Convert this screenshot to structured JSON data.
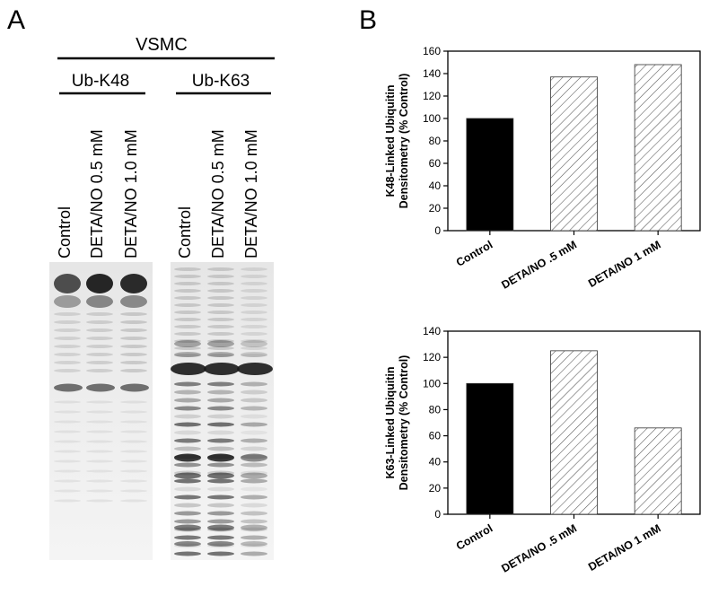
{
  "panel_a": {
    "letter": "A",
    "cell_label": "VSMC",
    "group_k48": "Ub-K48",
    "group_k63": "Ub-K63",
    "lanes_k48": [
      "Control",
      "DETA/NO 0.5 mM",
      "DETA/NO 1.0 mM"
    ],
    "lanes_k63": [
      "Control",
      "DETA/NO 0.5 mM",
      "DETA/NO 1.0 mM"
    ]
  },
  "panel_b": {
    "letter": "B"
  },
  "colors": {
    "control_bar": "#000000",
    "hatch_line": "#555555",
    "axis": "#000000",
    "blot_band": "#1a1a1a"
  },
  "chart_data": [
    {
      "type": "bar",
      "categories": [
        "Control",
        "DETA/NO .5 mM",
        "DETA/NO 1 mM"
      ],
      "values": [
        100,
        137,
        148
      ],
      "fills": [
        "solid",
        "hatch",
        "hatch"
      ],
      "title": "",
      "xlabel": "",
      "ylabel_line1": "K48-Linked Ubiquitin",
      "ylabel_line2": "Densitometry (% Control)",
      "ylim": [
        0,
        160
      ],
      "yticks": [
        0,
        20,
        40,
        60,
        80,
        100,
        120,
        140,
        160
      ],
      "grid": false
    },
    {
      "type": "bar",
      "categories": [
        "Control",
        "DETA/NO .5 mM",
        "DETA/NO 1 mM"
      ],
      "values": [
        100,
        125,
        66
      ],
      "fills": [
        "solid",
        "hatch",
        "hatch"
      ],
      "title": "",
      "xlabel": "",
      "ylabel_line1": "K63-Linked Ubiquitin",
      "ylabel_line2": "Densitometry (% Control)",
      "ylim": [
        0,
        140
      ],
      "yticks": [
        0,
        20,
        40,
        60,
        80,
        100,
        120,
        140
      ],
      "grid": false
    }
  ]
}
